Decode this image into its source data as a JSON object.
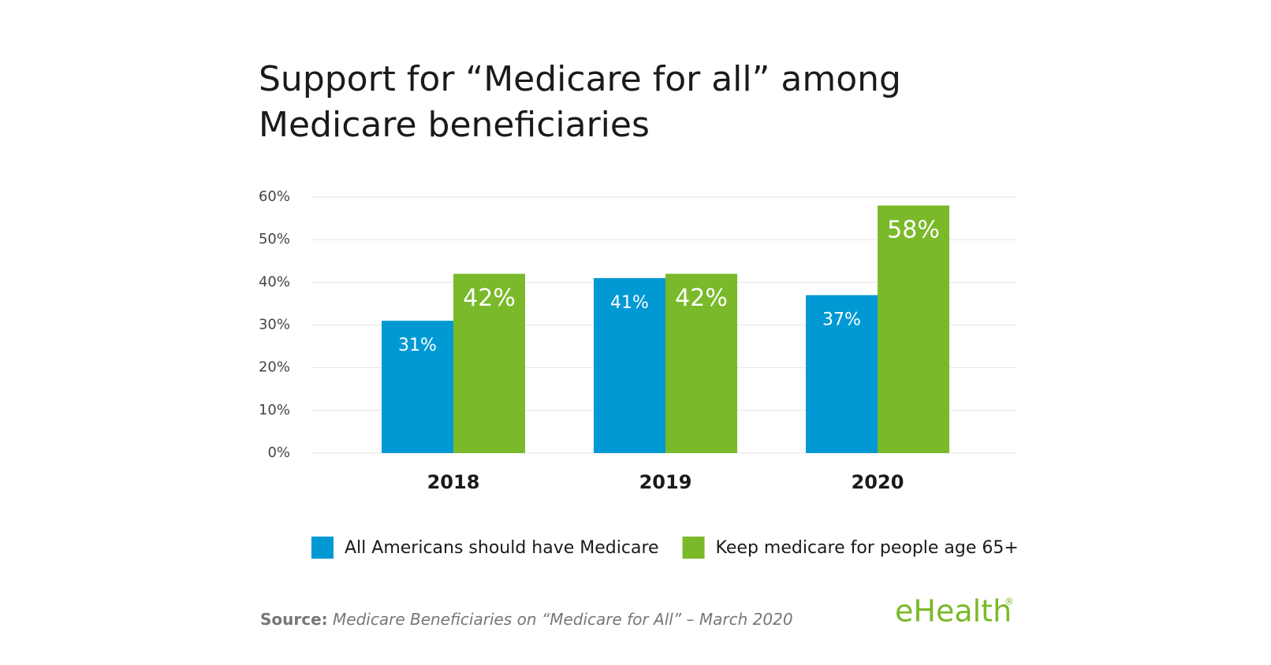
{
  "chart_data": {
    "type": "bar",
    "title": "Support for “Medicare for all” among Medicare beneficiaries",
    "categories": [
      "2018",
      "2019",
      "2020"
    ],
    "series": [
      {
        "name": "All Americans should have Medicare",
        "color": "#0099d4",
        "values": [
          31,
          41,
          37
        ],
        "value_labels": [
          "31%",
          "41%",
          "37%"
        ]
      },
      {
        "name": "Keep medicare for people age 65+",
        "color": "#7ab929",
        "values": [
          42,
          42,
          58
        ],
        "value_labels": [
          "42%",
          "42%",
          "58%"
        ]
      }
    ],
    "ylim": [
      0,
      60
    ],
    "yticks": [
      {
        "value": 0,
        "label": "0%"
      },
      {
        "value": 10,
        "label": "10%"
      },
      {
        "value": 20,
        "label": "20%"
      },
      {
        "value": 30,
        "label": "30%"
      },
      {
        "value": 40,
        "label": "40%"
      },
      {
        "value": 50,
        "label": "50%"
      },
      {
        "value": 60,
        "label": "60%"
      }
    ],
    "grid": true,
    "source_label": "Source:",
    "source": "Medicare Beneficiaries on “Medicare for All” – March 2020",
    "logo": "eHealth",
    "logo_mark": "®"
  }
}
